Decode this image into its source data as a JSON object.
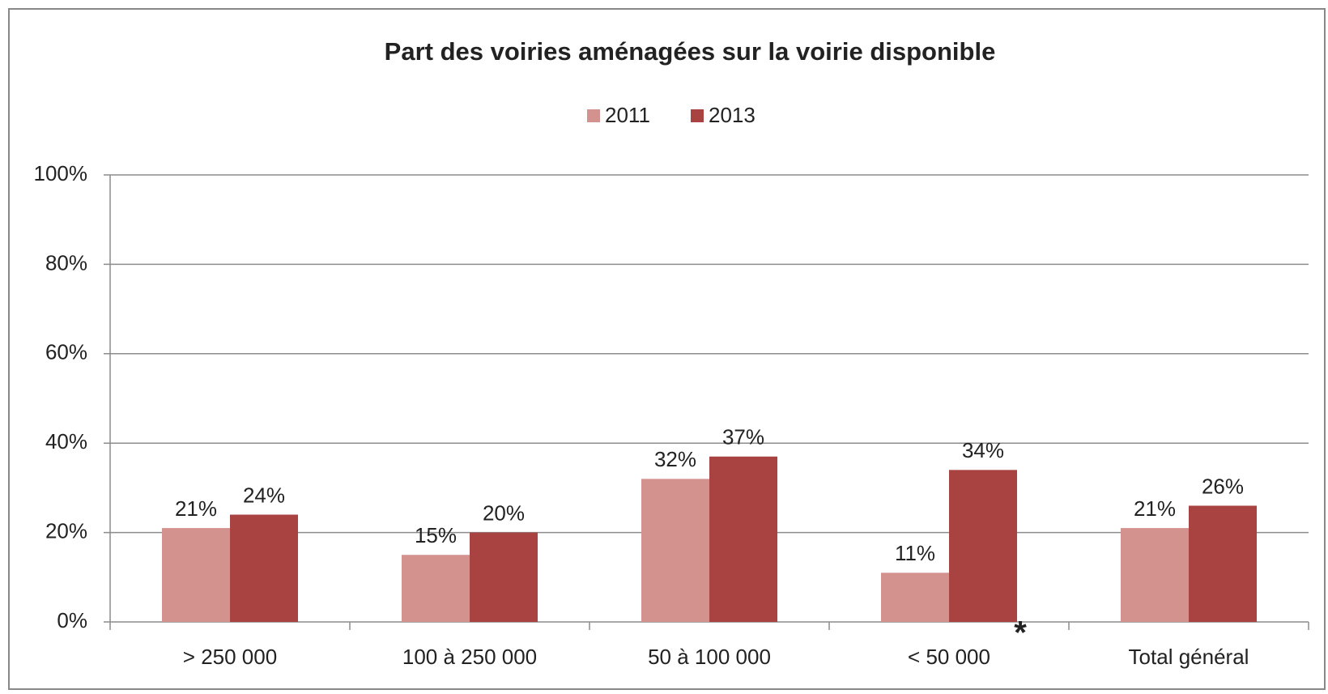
{
  "chart_data": {
    "type": "bar",
    "title": "Part des voiries aménagées sur la voirie disponible",
    "categories": [
      "> 250 000",
      "100 à 250 000",
      "50 à 100 000",
      "< 50 000",
      "Total général"
    ],
    "series": [
      {
        "name": "2011",
        "color": "#d4928f",
        "values": [
          21,
          15,
          32,
          11,
          21
        ],
        "value_labels": [
          "21%",
          "15%",
          "32%",
          "11%",
          "21%"
        ]
      },
      {
        "name": "2013",
        "color": "#a84341",
        "values": [
          24,
          20,
          37,
          34,
          26
        ],
        "value_labels": [
          "24%",
          "20%",
          "37%",
          "34%",
          "26%"
        ]
      }
    ],
    "annotation": "*",
    "ylim": [
      0,
      100
    ],
    "yticks": [
      {
        "value": 0,
        "label": "0%"
      },
      {
        "value": 20,
        "label": "20%"
      },
      {
        "value": 40,
        "label": "40%"
      },
      {
        "value": 60,
        "label": "60%"
      },
      {
        "value": 80,
        "label": "80%"
      },
      {
        "value": 100,
        "label": "100%"
      }
    ],
    "grid": true,
    "legend": "top"
  }
}
